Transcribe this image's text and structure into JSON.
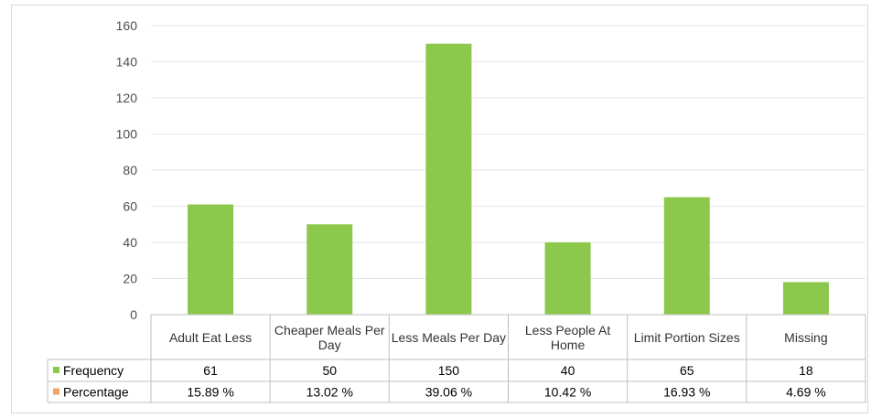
{
  "chart_data": {
    "type": "bar",
    "categories": [
      "Adult Eat Less",
      "Cheaper Meals Per Day",
      "Less Meals Per Day",
      "Less People At Home",
      "Limit Portion Sizes",
      "Missing"
    ],
    "series": [
      {
        "name": "Frequency",
        "values": [
          61,
          50,
          150,
          40,
          65,
          18
        ],
        "color": "#8cc84b"
      },
      {
        "name": "Percentage",
        "values": [
          15.89,
          13.02,
          39.06,
          10.42,
          16.93,
          4.69
        ],
        "color": "#f4a460",
        "display": [
          "15.89 %",
          "13.02 %",
          "39.06 %",
          "10.42 %",
          "16.93 %",
          "4.69 %"
        ]
      }
    ],
    "y_ticks": [
      "0",
      "20",
      "40",
      "60",
      "80",
      "100",
      "120",
      "140",
      "160"
    ],
    "ylim": [
      0,
      160
    ],
    "grid": true,
    "legend": "data table"
  },
  "colors": {
    "bar": "#8cc84b",
    "grid": "#e6e6e6",
    "table_border": "#bfbfbf",
    "percentage_key": "#f4a460"
  }
}
